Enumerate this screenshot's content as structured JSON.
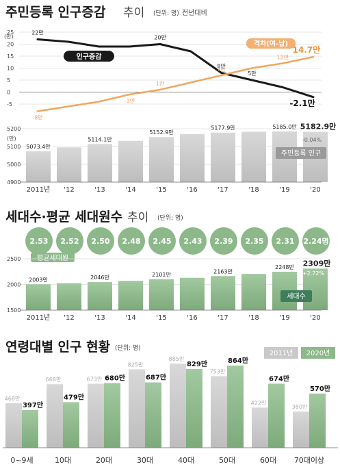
{
  "chart_data": [
    {
      "type": "line",
      "title": "주민등록 인구증감",
      "title_suffix": "추이",
      "unit_note": "(단위: 명)",
      "comparison_note": "전년대비",
      "y_tick_labels": [
        "25",
        "20",
        "15",
        "10",
        "5",
        "0",
        "-5"
      ],
      "y_unit_label": "(만)",
      "ylim": [
        -5,
        25
      ],
      "series": [
        {
          "name": "인구증감",
          "color": "#1a1a1a",
          "x": [
            "2011",
            "2012",
            "2013",
            "2014",
            "2015",
            "2016",
            "2017",
            "2018",
            "2019",
            "2020"
          ],
          "values": [
            22,
            21,
            19,
            19,
            20,
            17,
            8,
            5,
            2,
            -2.1
          ],
          "labels": [
            "22만",
            "",
            "",
            "",
            "20만",
            "",
            "8만",
            "5만",
            "",
            "-2.1만"
          ]
        },
        {
          "name": "격차(여-남)",
          "color": "#f0a860",
          "x": [
            "2011",
            "2012",
            "2013",
            "2014",
            "2015",
            "2016",
            "2017",
            "2018",
            "2019",
            "2020"
          ],
          "values": [
            -8,
            -6,
            -4,
            -1,
            1,
            4,
            7,
            10,
            12,
            14.7
          ],
          "labels": [
            "-8만",
            "",
            "",
            "-1만",
            "1만",
            "",
            "7만",
            "",
            "12만",
            "14.7만"
          ]
        }
      ]
    },
    {
      "type": "bar",
      "series_name": "주민등록 인구",
      "categories": [
        "2011년",
        "'12",
        "'13",
        "'14",
        "'15",
        "'16",
        "'17",
        "'18",
        "'19",
        "'20"
      ],
      "values": [
        5073.4,
        5095,
        5114.1,
        5132,
        5152.9,
        5170,
        5177.9,
        5183,
        5185.0,
        5182.9
      ],
      "labels": [
        "5073.4만",
        "",
        "5114.1만",
        "",
        "5152.9만",
        "",
        "5177.9만",
        "",
        "5185.0만",
        "5182.9만"
      ],
      "change_note": "-0.04%",
      "ylim": [
        4900,
        5200
      ],
      "y_tick_labels": [
        "5200",
        "5100",
        "5000",
        "4900"
      ],
      "y_unit_label": "(만)",
      "color": "#c9c9c9"
    },
    {
      "type": "bar",
      "title": "세대수·평균 세대원수",
      "title_suffix": "추이",
      "unit_note": "(단위: 명)",
      "bubble_label": "평균세대원",
      "bubbles": [
        "2.53",
        "2.52",
        "2.50",
        "2.48",
        "2.45",
        "2.43",
        "2.39",
        "2.35",
        "2.31",
        "2.24명"
      ],
      "series_name": "세대수",
      "categories": [
        "2011년",
        "'12",
        "'13",
        "'14",
        "'15",
        "'16",
        "'17",
        "'18",
        "'19",
        "'20"
      ],
      "values": [
        2003,
        2025,
        2046,
        2070,
        2101,
        2130,
        2163,
        2205,
        2248,
        2309
      ],
      "labels": [
        "2003만",
        "",
        "2046만",
        "",
        "2101만",
        "",
        "2163만",
        "",
        "2248만",
        "2309만"
      ],
      "change_note": "+2.72%",
      "ylim": [
        1500,
        2500
      ],
      "y_tick_labels": [
        "2500",
        "2000",
        "1500"
      ],
      "color": "#8cb88a"
    },
    {
      "type": "bar",
      "title": "연령대별 인구 현황",
      "unit_note": "(단위: 명)",
      "categories": [
        "0~9세",
        "10대",
        "20대",
        "30대",
        "40대",
        "50대",
        "60대",
        "70대이상"
      ],
      "series": [
        {
          "name": "2011년",
          "color": "#c9c9c9",
          "values": [
            468,
            668,
            673,
            825,
            885,
            753,
            422,
            380
          ],
          "labels": [
            "468만",
            "668만",
            "673만",
            "825만",
            "885만",
            "753만",
            "422만",
            "380만"
          ]
        },
        {
          "name": "2020년",
          "color": "#8cb88a",
          "values": [
            397,
            479,
            680,
            687,
            829,
            864,
            674,
            570
          ],
          "labels": [
            "397만",
            "479만",
            "680만",
            "687만",
            "829만",
            "864만",
            "674만",
            "570만"
          ]
        }
      ]
    }
  ]
}
